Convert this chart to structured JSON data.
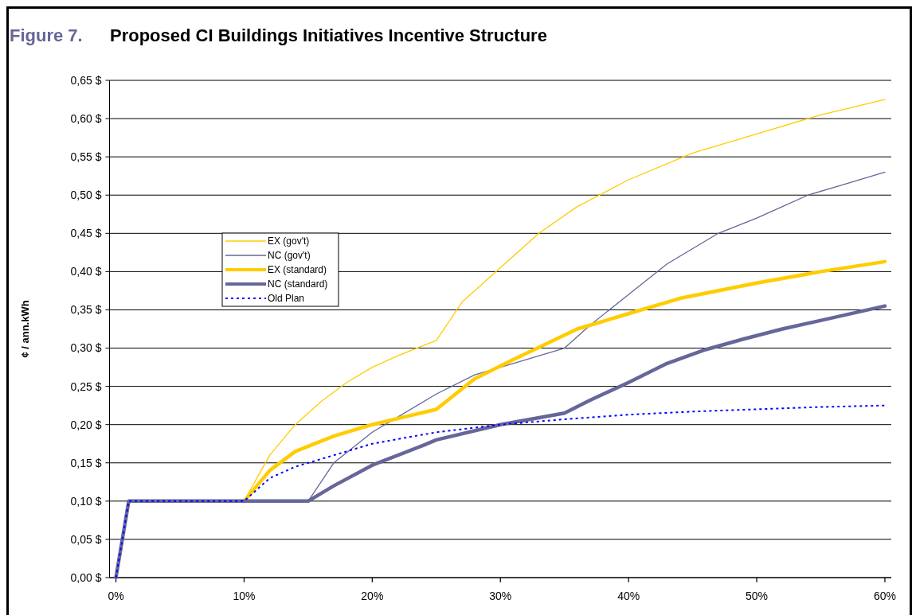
{
  "chart_data": {
    "type": "line",
    "title": "Proposed CI Buildings Initiatives Incentive Structure",
    "annotations": [
      "Figure 7."
    ],
    "ylabel": "¢ / ann.kWh",
    "xlim": [
      -0.5,
      60.5
    ],
    "xticks": [
      {
        "value": 0,
        "label": "0%"
      },
      {
        "value": 10,
        "label": "10%"
      },
      {
        "value": 20,
        "label": "20%"
      },
      {
        "value": 30,
        "label": "30%"
      },
      {
        "value": 40,
        "label": "40%"
      },
      {
        "value": 50,
        "label": "50%"
      },
      {
        "value": 60,
        "label": "60%"
      }
    ],
    "ylim": [
      0,
      0.65
    ],
    "yticks": [
      {
        "value": 0,
        "label": "0,00 $"
      },
      {
        "value": 0.05,
        "label": "0,05 $"
      },
      {
        "value": 0.1,
        "label": "0,10 $"
      },
      {
        "value": 0.15,
        "label": "0,15 $"
      },
      {
        "value": 0.2,
        "label": "0,20 $"
      },
      {
        "value": 0.25,
        "label": "0,25 $"
      },
      {
        "value": 0.3,
        "label": "0,30 $"
      },
      {
        "value": 0.35,
        "label": "0,35 $"
      },
      {
        "value": 0.4,
        "label": "0,40 $"
      },
      {
        "value": 0.45,
        "label": "0,45 $"
      },
      {
        "value": 0.5,
        "label": "0,50 $"
      },
      {
        "value": 0.55,
        "label": "0,55 $"
      },
      {
        "value": 0.6,
        "label": "0,60 $"
      },
      {
        "value": 0.65,
        "label": "0,65 $"
      }
    ],
    "grid": "y",
    "legend": "left",
    "marker": "none",
    "series": [
      {
        "name": "EX (gov't)",
        "color": "#ffcc00",
        "x": [
          10,
          12,
          14,
          16,
          18,
          20,
          22,
          25,
          27,
          30,
          33,
          36,
          40,
          45,
          50,
          55,
          60
        ],
        "values": [
          0.1,
          0.16,
          0.2,
          0.23,
          0.255,
          0.275,
          0.29,
          0.31,
          0.36,
          0.405,
          0.45,
          0.485,
          0.52,
          0.555,
          0.58,
          0.605,
          0.625
        ]
      },
      {
        "name": "NC (gov't)",
        "color": "#666699",
        "x": [
          15,
          17,
          20,
          22,
          25,
          28,
          31,
          35,
          37,
          40,
          43,
          47,
          50,
          54,
          57,
          60
        ],
        "values": [
          0.1,
          0.15,
          0.19,
          0.21,
          0.24,
          0.265,
          0.28,
          0.3,
          0.33,
          0.37,
          0.41,
          0.45,
          0.47,
          0.5,
          0.515,
          0.53
        ]
      },
      {
        "name": "EX (standard)",
        "color": "#ffcc00",
        "x": [
          10,
          12,
          14,
          17,
          20,
          25,
          28,
          31,
          36,
          40,
          44,
          50,
          55,
          60
        ],
        "values": [
          0.1,
          0.14,
          0.165,
          0.185,
          0.2,
          0.22,
          0.26,
          0.285,
          0.325,
          0.345,
          0.365,
          0.385,
          0.4,
          0.413
        ]
      },
      {
        "name": "NC (standard)",
        "color": "#666699",
        "x": [
          0,
          1,
          15,
          17,
          20,
          24,
          25,
          30,
          35,
          37,
          40,
          43,
          46,
          49,
          52,
          56,
          60
        ],
        "values": [
          0,
          0.1,
          0.1,
          0.12,
          0.147,
          0.173,
          0.18,
          0.2,
          0.215,
          0.232,
          0.255,
          0.28,
          0.298,
          0.312,
          0.325,
          0.34,
          0.355
        ]
      },
      {
        "name": "Old Plan",
        "color": "#0000ff",
        "line_style": "dotted",
        "x": [
          0,
          1,
          10,
          12,
          14,
          15,
          20,
          25,
          30,
          35,
          40,
          45,
          50,
          55,
          60
        ],
        "values": [
          0,
          0.1,
          0.1,
          0.13,
          0.145,
          0.15,
          0.175,
          0.19,
          0.2,
          0.207,
          0.213,
          0.217,
          0.22,
          0.223,
          0.225
        ]
      }
    ]
  }
}
